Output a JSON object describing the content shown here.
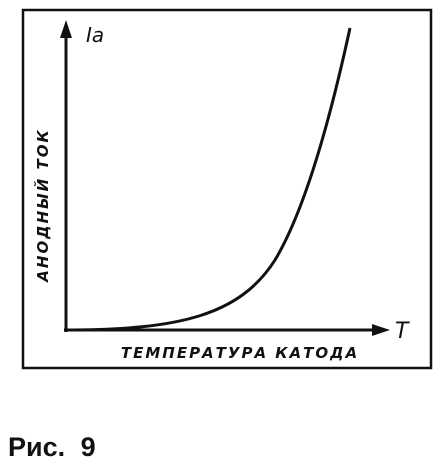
{
  "diagram": {
    "y_axis_symbol": "Iа",
    "x_axis_symbol": "T",
    "y_axis_label": "АНОДНЫЙ ТОК",
    "x_axis_label": "ТЕМПЕРАТУРА КАТОДА"
  },
  "caption": "Рис. 9"
}
